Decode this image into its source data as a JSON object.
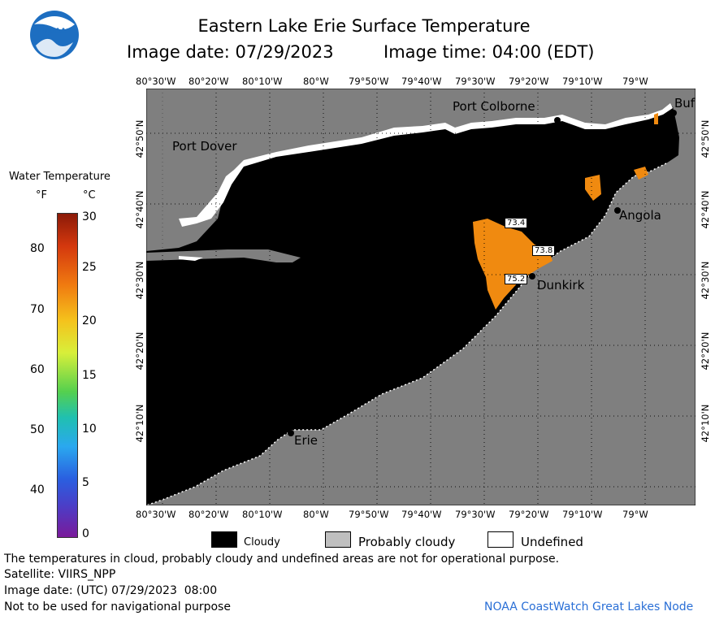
{
  "header": {
    "title": "Eastern Lake Erie Surface Temperature",
    "image_date": "Image date: 07/29/2023",
    "image_time": "Image time: 04:00 (EDT)"
  },
  "logo": {
    "text": "NOAA"
  },
  "colorbar": {
    "title": "Water Temperature",
    "unit_f": "°F",
    "unit_c": "°C",
    "f_ticks": [
      "80",
      "70",
      "60",
      "50",
      "40"
    ],
    "c_ticks": [
      "30",
      "25",
      "20",
      "15",
      "10",
      "5",
      "0"
    ]
  },
  "axes": {
    "lon_labels": [
      "80°30'W",
      "80°20'W",
      "80°10'W",
      "80°W",
      "79°50'W",
      "79°40'W",
      "79°30'W",
      "79°20'W",
      "79°10'W",
      "79°W"
    ],
    "lat_labels": [
      "42°50'N",
      "42°40'N",
      "42°30'N",
      "42°20'N",
      "42°10'N"
    ]
  },
  "places": {
    "port_colborne": "Port Colborne",
    "port_dover": "Port Dover",
    "buffalo": "Buf",
    "angola": "Angola",
    "dunkirk": "Dunkirk",
    "erie": "Erie"
  },
  "temperature_labels": [
    "73.4",
    "73.8",
    "75.2"
  ],
  "legend": {
    "cloudy": "Cloudy",
    "probably_cloudy": "Probably cloudy",
    "undefined": "Undefined"
  },
  "colors": {
    "land": "#7f7f7f",
    "cloud": "#000000",
    "probably_cloudy": "#bfbfbf",
    "undefined": "#ffffff",
    "warm_water": "#f08a10",
    "credit": "#2a6fd6"
  },
  "footer": {
    "disclaimer": "The temperatures in cloud, probably cloudy and undefined areas are not for operational purpose.",
    "satellite": "Satellite: VIIRS_NPP",
    "utc_date": "Image date: (UTC) 07/29/2023  08:00",
    "nav_warning": "Not to be used for navigational purpose",
    "credit": "NOAA CoastWatch Great Lakes Node"
  }
}
